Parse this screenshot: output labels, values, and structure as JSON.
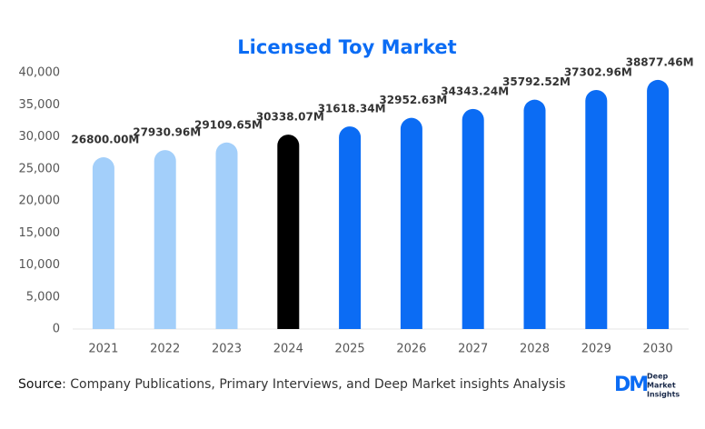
{
  "chart_data": {
    "type": "bar",
    "title": "Licensed Toy Market",
    "categories": [
      "2021",
      "2022",
      "2023",
      "2024",
      "2025",
      "2026",
      "2027",
      "2028",
      "2029",
      "2030"
    ],
    "values": [
      26800.0,
      27930.96,
      29109.65,
      30338.07,
      31618.34,
      32952.63,
      34343.24,
      35792.52,
      37302.96,
      38877.46
    ],
    "value_labels": [
      "26800.00M",
      "27930.96M",
      "29109.65M",
      "30338.07M",
      "31618.34M",
      "32952.63M",
      "34343.24M",
      "35792.52M",
      "37302.96M",
      "38877.46M"
    ],
    "colors": [
      "#a3cffa",
      "#a3cffa",
      "#a3cffa",
      "#000000",
      "#0b6cf4",
      "#0b6cf4",
      "#0b6cf4",
      "#0b6cf4",
      "#0b6cf4",
      "#0b6cf4"
    ],
    "ylim": [
      0,
      40000
    ],
    "yticks": [
      0,
      {
        "value": 5000,
        "label": "5,000"
      },
      {
        "value": 10000,
        "label": "10,000"
      },
      {
        "value": 15000,
        "label": "15,000"
      },
      {
        "value": 20000,
        "label": "20,000"
      },
      {
        "value": 25000,
        "label": "25,000"
      },
      {
        "value": 30000,
        "label": "30,000"
      },
      {
        "value": 35000,
        "label": "35,000"
      },
      {
        "value": 40000,
        "label": "40,000"
      }
    ],
    "grid": false
  },
  "footer": {
    "source_label": "Source",
    "source_text": ": Company Publications, Primary Interviews, and Deep Market insights Analysis"
  },
  "logo": {
    "mark": "DM",
    "lines": [
      "Deep",
      "Market",
      "Insights"
    ]
  }
}
